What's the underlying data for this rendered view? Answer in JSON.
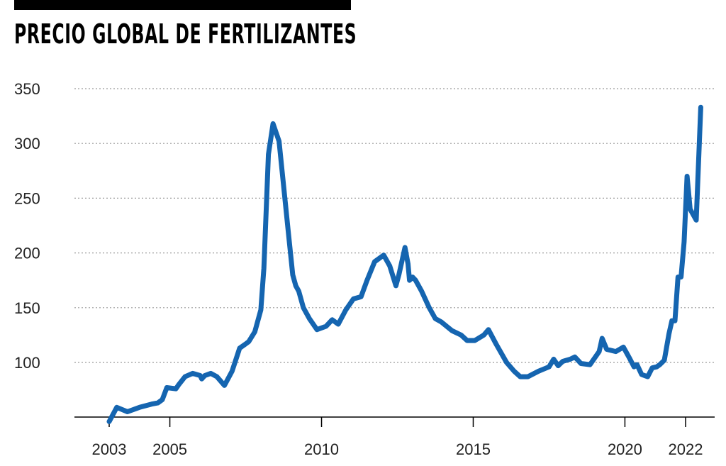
{
  "chart_data": {
    "type": "line",
    "title": "PRECIO GLOBAL DE FERTILIZANTES",
    "xlabel": "",
    "ylabel": "",
    "ylim": [
      43,
      350
    ],
    "xlim": [
      2002.9,
      2022.85
    ],
    "y_ticks": [
      350,
      300,
      250,
      200,
      150,
      100
    ],
    "x_ticks": [
      2003,
      2005,
      2010,
      2015,
      2020,
      2022
    ],
    "grid": "horizontal dotted",
    "color": "#1565b0",
    "series": [
      {
        "x": [
          2003.0,
          2003.25,
          2003.6,
          2004.0,
          2004.4,
          2004.6,
          2004.75,
          2004.9,
          2005.2,
          2005.3,
          2005.5,
          2005.75,
          2006.0,
          2006.05,
          2006.15,
          2006.35,
          2006.55,
          2006.8,
          2007.05,
          2007.3,
          2007.5,
          2007.6,
          2007.8,
          2008.0,
          2008.1,
          2008.25,
          2008.4,
          2008.6,
          2008.9,
          2009.05,
          2009.15,
          2009.25,
          2009.4,
          2009.6,
          2009.85,
          2010.15,
          2010.35,
          2010.55,
          2010.8,
          2011.05,
          2011.3,
          2011.5,
          2011.75,
          2012.05,
          2012.25,
          2012.45,
          2012.55,
          2012.75,
          2012.85,
          2012.9,
          2013.0,
          2013.1,
          2013.3,
          2013.55,
          2013.75,
          2013.95,
          2014.3,
          2014.6,
          2014.8,
          2015.05,
          2015.35,
          2015.5,
          2015.75,
          2016.1,
          2016.35,
          2016.55,
          2016.8,
          2017.15,
          2017.5,
          2017.65,
          2017.8,
          2017.95,
          2018.2,
          2018.35,
          2018.55,
          2018.85,
          2019.15,
          2019.25,
          2019.4,
          2019.7,
          2019.95,
          2020.15,
          2020.3,
          2020.4,
          2020.55,
          2020.75,
          2020.9,
          2021.05,
          2021.15,
          2021.3,
          2021.45,
          2021.55,
          2021.65,
          2021.75,
          2021.85,
          2021.95,
          2022.05,
          2022.15,
          2022.35,
          2022.5
        ],
        "y": [
          46,
          59,
          55,
          59,
          62,
          63,
          66,
          77,
          76,
          80,
          87,
          90,
          88,
          85,
          88,
          90,
          87,
          79,
          92,
          113,
          117,
          119,
          128,
          148,
          186,
          290,
          318,
          302,
          220,
          180,
          170,
          165,
          150,
          140,
          130,
          133,
          139,
          135,
          148,
          158,
          160,
          175,
          192,
          198,
          188,
          170,
          180,
          205,
          190,
          175,
          178,
          175,
          165,
          150,
          140,
          137,
          129,
          125,
          120,
          120,
          125,
          130,
          117,
          100,
          92,
          87,
          87,
          92,
          96,
          103,
          97,
          101,
          103,
          105,
          99,
          98,
          110,
          122,
          112,
          110,
          114,
          104,
          96,
          98,
          89,
          87,
          95,
          96,
          98,
          102,
          126,
          138,
          138,
          178,
          178,
          210,
          270,
          240,
          230,
          333
        ]
      }
    ]
  }
}
